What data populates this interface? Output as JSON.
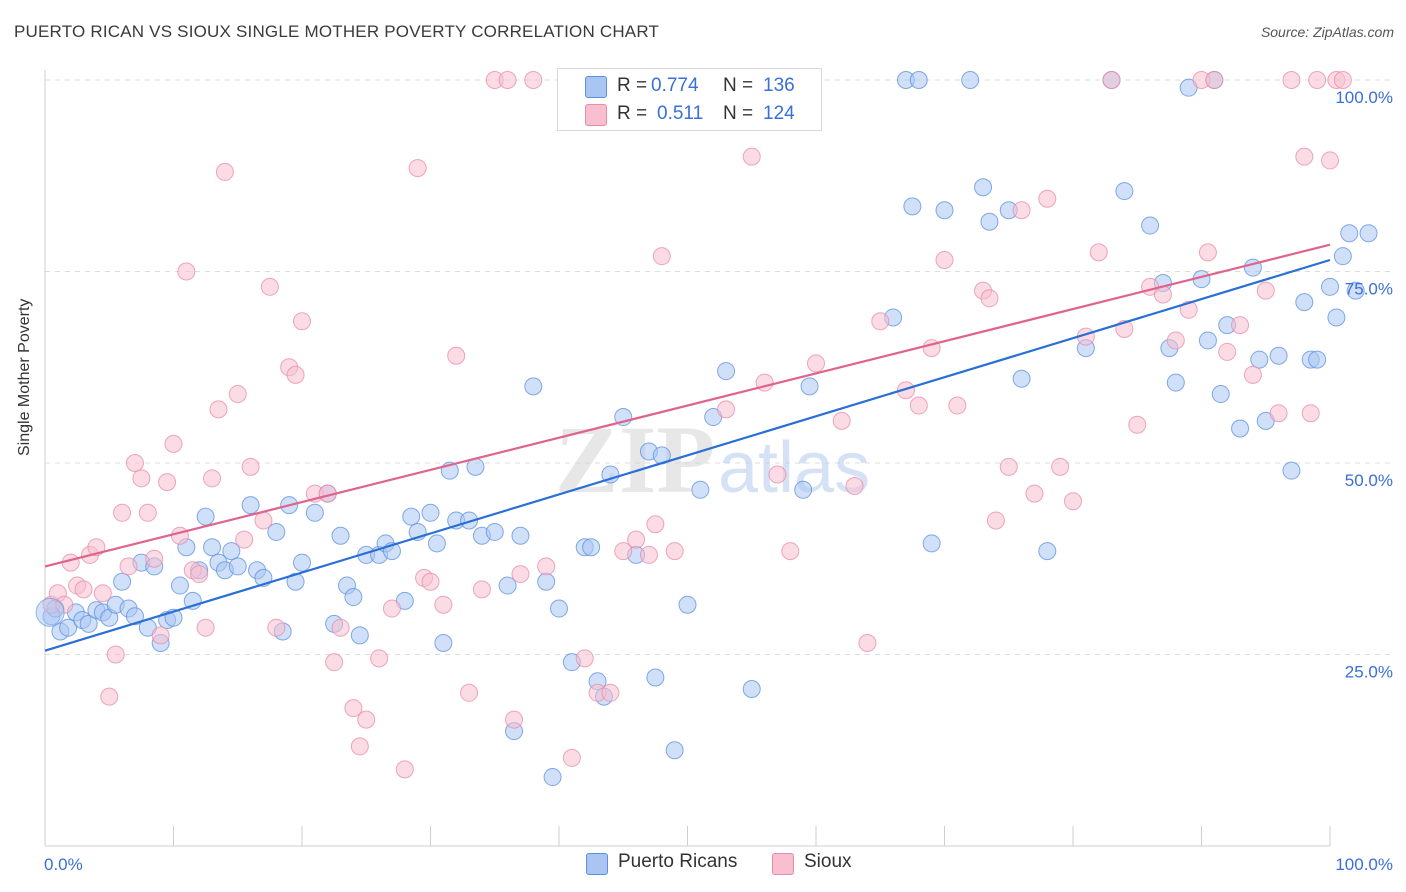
{
  "header": {
    "title": "PUERTO RICAN VS SIOUX SINGLE MOTHER POVERTY CORRELATION CHART",
    "source": "Source: ZipAtlas.com"
  },
  "legend": {
    "series_a": {
      "r_label": "R =",
      "r_value": "0.774",
      "n_label": "N =",
      "n_value": "136"
    },
    "series_b": {
      "r_label": "R =",
      "r_value": "0.511",
      "n_label": "N =",
      "n_value": "124"
    }
  },
  "bottom_legend": {
    "series_a": "Puerto Ricans",
    "series_b": "Sioux"
  },
  "watermark": {
    "zip": "ZIP",
    "atlas": "atlas"
  },
  "colors": {
    "blue_fill": "#a9c6f2",
    "blue_stroke": "#5b8fe0",
    "blue_line": "#2a6fd6",
    "pink_fill": "#f7bfd0",
    "pink_stroke": "#e88aa8",
    "pink_line": "#e0638c",
    "axis_label": "#3a6fd8"
  },
  "chart_data": {
    "type": "scatter",
    "title": "PUERTO RICAN VS SIOUX SINGLE MOTHER POVERTY CORRELATION CHART",
    "xlabel": "",
    "ylabel": "Single Mother Poverty",
    "xlim": [
      0,
      100
    ],
    "ylim": [
      0,
      102
    ],
    "x_tick_labels": [
      "0.0%",
      "100.0%"
    ],
    "y_ticks": [
      25,
      50,
      75,
      100
    ],
    "y_tick_labels": [
      "25.0%",
      "50.0%",
      "75.0%",
      "100.0%"
    ],
    "grid": true,
    "legend_position": "top-center",
    "series": [
      {
        "name": "Puerto Ricans",
        "r": 0.774,
        "n": 136,
        "trend": {
          "x": [
            0,
            100
          ],
          "y": [
            25.5,
            76.5
          ]
        },
        "points": [
          [
            0.5,
            30
          ],
          [
            0.8,
            31
          ],
          [
            1.2,
            28
          ],
          [
            1.8,
            28.5
          ],
          [
            2.4,
            30.5
          ],
          [
            2.9,
            29.5
          ],
          [
            3.4,
            29
          ],
          [
            4,
            30.8
          ],
          [
            4.5,
            30.5
          ],
          [
            5,
            29.8
          ],
          [
            5.5,
            31.5
          ],
          [
            6,
            34.5
          ],
          [
            6.5,
            31
          ],
          [
            7,
            30
          ],
          [
            7.5,
            37
          ],
          [
            8,
            28.5
          ],
          [
            8.5,
            36.5
          ],
          [
            9,
            26.5
          ],
          [
            9.5,
            29.5
          ],
          [
            10,
            29.8
          ],
          [
            10.5,
            34
          ],
          [
            11,
            39
          ],
          [
            11.5,
            32
          ],
          [
            12,
            36
          ],
          [
            12.5,
            43
          ],
          [
            13,
            39
          ],
          [
            13.5,
            37
          ],
          [
            14,
            36
          ],
          [
            14.5,
            38.5
          ],
          [
            15,
            36.5
          ],
          [
            16,
            44.5
          ],
          [
            16.5,
            36
          ],
          [
            17,
            35
          ],
          [
            18,
            41
          ],
          [
            18.5,
            28
          ],
          [
            19,
            44.5
          ],
          [
            19.5,
            34.5
          ],
          [
            20,
            37
          ],
          [
            21,
            43.5
          ],
          [
            22,
            46
          ],
          [
            22.5,
            29
          ],
          [
            23,
            40.5
          ],
          [
            23.5,
            34
          ],
          [
            24,
            32.5
          ],
          [
            24.5,
            27.5
          ],
          [
            25,
            38
          ],
          [
            26,
            38
          ],
          [
            26.5,
            39.5
          ],
          [
            27,
            38.5
          ],
          [
            28,
            32
          ],
          [
            28.5,
            43
          ],
          [
            29,
            41
          ],
          [
            30,
            43.5
          ],
          [
            30.5,
            39.5
          ],
          [
            31,
            26.5
          ],
          [
            31.5,
            49
          ],
          [
            32,
            42.5
          ],
          [
            33,
            42.5
          ],
          [
            33.5,
            49.5
          ],
          [
            34,
            40.5
          ],
          [
            35,
            41
          ],
          [
            36,
            34
          ],
          [
            36.5,
            15
          ],
          [
            37,
            40.5
          ],
          [
            38,
            60
          ],
          [
            39,
            34.5
          ],
          [
            39.5,
            9
          ],
          [
            40,
            31
          ],
          [
            41,
            24
          ],
          [
            42,
            39
          ],
          [
            42.5,
            39
          ],
          [
            43,
            21.5
          ],
          [
            43.5,
            19.5
          ],
          [
            44,
            48.5
          ],
          [
            45,
            56
          ],
          [
            46,
            38
          ],
          [
            47,
            51.5
          ],
          [
            47.5,
            22
          ],
          [
            48,
            51
          ],
          [
            49,
            12.5
          ],
          [
            50,
            31.5
          ],
          [
            51,
            46.5
          ],
          [
            52,
            56
          ],
          [
            53,
            62
          ],
          [
            55,
            20.5
          ],
          [
            59,
            46.5
          ],
          [
            59.5,
            60
          ],
          [
            66,
            69
          ],
          [
            67,
            100
          ],
          [
            67.5,
            83.5
          ],
          [
            68,
            100
          ],
          [
            69,
            39.5
          ],
          [
            70,
            83
          ],
          [
            72,
            100
          ],
          [
            73,
            86
          ],
          [
            73.5,
            81.5
          ],
          [
            75,
            83
          ],
          [
            76,
            61
          ],
          [
            78,
            38.5
          ],
          [
            81,
            65
          ],
          [
            83,
            100
          ],
          [
            84,
            85.5
          ],
          [
            86,
            81
          ],
          [
            87,
            73.5
          ],
          [
            87.5,
            65
          ],
          [
            88,
            60.5
          ],
          [
            89,
            99
          ],
          [
            90,
            74
          ],
          [
            90.5,
            66
          ],
          [
            91,
            100
          ],
          [
            91.5,
            59
          ],
          [
            92,
            68
          ],
          [
            93,
            54.5
          ],
          [
            94,
            75.5
          ],
          [
            94.5,
            63.5
          ],
          [
            95,
            55.5
          ],
          [
            96,
            64
          ],
          [
            97,
            49
          ],
          [
            98,
            71
          ],
          [
            98.5,
            63.5
          ],
          [
            99,
            63.5
          ],
          [
            100,
            73
          ],
          [
            100.5,
            69
          ],
          [
            101,
            77
          ],
          [
            101.5,
            80
          ],
          [
            102,
            72.5
          ],
          [
            103,
            80
          ]
        ]
      },
      {
        "name": "Sioux",
        "r": 0.511,
        "n": 124,
        "trend": {
          "x": [
            0,
            100
          ],
          "y": [
            36.5,
            78.5
          ]
        },
        "points": [
          [
            0.5,
            31.5
          ],
          [
            1,
            33
          ],
          [
            1.5,
            31.5
          ],
          [
            2,
            37
          ],
          [
            2.5,
            34
          ],
          [
            3,
            33.5
          ],
          [
            3.5,
            38
          ],
          [
            4,
            39
          ],
          [
            4.5,
            33
          ],
          [
            5,
            19.5
          ],
          [
            5.5,
            25
          ],
          [
            6,
            43.5
          ],
          [
            6.5,
            36.5
          ],
          [
            7,
            50
          ],
          [
            7.5,
            48
          ],
          [
            8,
            43.5
          ],
          [
            8.5,
            37.5
          ],
          [
            9,
            27.5
          ],
          [
            9.5,
            47.5
          ],
          [
            10,
            52.5
          ],
          [
            10.5,
            40.5
          ],
          [
            11,
            75
          ],
          [
            11.5,
            36
          ],
          [
            12,
            35.5
          ],
          [
            12.5,
            28.5
          ],
          [
            13,
            48
          ],
          [
            13.5,
            57
          ],
          [
            14,
            88
          ],
          [
            15,
            59
          ],
          [
            15.5,
            40
          ],
          [
            16,
            49.5
          ],
          [
            17,
            42.5
          ],
          [
            17.5,
            73
          ],
          [
            18,
            28.5
          ],
          [
            19,
            62.5
          ],
          [
            19.5,
            61.5
          ],
          [
            20,
            68.5
          ],
          [
            21,
            46
          ],
          [
            22,
            46
          ],
          [
            22.5,
            24
          ],
          [
            23,
            28.5
          ],
          [
            24,
            18
          ],
          [
            24.5,
            13
          ],
          [
            25,
            16.5
          ],
          [
            26,
            24.5
          ],
          [
            27,
            31
          ],
          [
            28,
            10
          ],
          [
            29,
            88.5
          ],
          [
            29.5,
            35
          ],
          [
            30,
            34.5
          ],
          [
            31,
            31.5
          ],
          [
            32,
            64
          ],
          [
            33,
            20
          ],
          [
            34,
            33.5
          ],
          [
            35,
            100
          ],
          [
            36,
            100
          ],
          [
            36.5,
            16.5
          ],
          [
            37,
            35.5
          ],
          [
            38,
            100
          ],
          [
            39,
            36.5
          ],
          [
            41,
            11.5
          ],
          [
            42,
            24.5
          ],
          [
            43,
            20
          ],
          [
            44,
            20
          ],
          [
            45,
            38.5
          ],
          [
            46,
            40
          ],
          [
            47,
            38
          ],
          [
            47.5,
            42
          ],
          [
            48,
            77
          ],
          [
            49,
            38.5
          ],
          [
            50,
            100
          ],
          [
            51,
            100
          ],
          [
            53,
            57
          ],
          [
            55,
            90
          ],
          [
            56,
            60.5
          ],
          [
            57,
            48.5
          ],
          [
            58,
            38.5
          ],
          [
            60,
            63
          ],
          [
            62,
            55.5
          ],
          [
            63,
            47
          ],
          [
            64,
            26.5
          ],
          [
            65,
            68.5
          ],
          [
            67,
            59.5
          ],
          [
            68,
            57.5
          ],
          [
            69,
            65
          ],
          [
            70,
            76.5
          ],
          [
            71,
            57.5
          ],
          [
            73,
            72.5
          ],
          [
            73.5,
            71.5
          ],
          [
            74,
            42.5
          ],
          [
            75,
            49.5
          ],
          [
            76,
            83
          ],
          [
            77,
            46
          ],
          [
            78,
            84.5
          ],
          [
            79,
            49.5
          ],
          [
            80,
            45
          ],
          [
            81,
            66.5
          ],
          [
            82,
            77.5
          ],
          [
            83,
            100
          ],
          [
            84,
            67.5
          ],
          [
            85,
            55
          ],
          [
            86,
            73
          ],
          [
            87,
            72
          ],
          [
            88,
            66
          ],
          [
            89,
            70
          ],
          [
            90,
            100
          ],
          [
            90.5,
            77.5
          ],
          [
            91,
            100
          ],
          [
            92,
            64.5
          ],
          [
            93,
            68
          ],
          [
            94,
            61.5
          ],
          [
            95,
            72.5
          ],
          [
            96,
            56.5
          ],
          [
            97,
            100
          ],
          [
            98,
            90
          ],
          [
            98.5,
            56.5
          ],
          [
            99,
            100
          ],
          [
            100,
            89.5
          ],
          [
            100.5,
            100
          ],
          [
            101,
            100
          ]
        ]
      }
    ]
  }
}
